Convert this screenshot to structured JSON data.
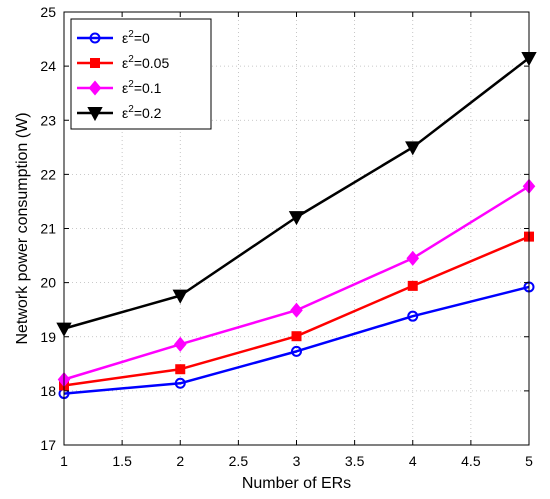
{
  "chart_data": {
    "type": "line",
    "xlabel": "Number of ERs",
    "ylabel": "Network power consumption (W)",
    "xlim": [
      1,
      5
    ],
    "ylim": [
      17,
      25
    ],
    "grid": true,
    "legend_position": "top-left",
    "x_ticks": [
      "1",
      "1.5",
      "2",
      "2.5",
      "3",
      "3.5",
      "4",
      "4.5",
      "5"
    ],
    "y_ticks": [
      "17",
      "18",
      "19",
      "20",
      "21",
      "22",
      "23",
      "24",
      "25"
    ],
    "x": [
      1,
      2,
      3,
      4,
      5
    ],
    "series": [
      {
        "name": "ε²=0",
        "legend_base": "ε",
        "legend_sup": "2",
        "legend_rest": "=0",
        "color": "#0000ff",
        "marker": "circle",
        "values": [
          17.95,
          18.14,
          18.73,
          19.38,
          19.92
        ]
      },
      {
        "name": "ε²=0.05",
        "legend_base": "ε",
        "legend_sup": "2",
        "legend_rest": "=0.05",
        "color": "#ff0000",
        "marker": "square",
        "values": [
          18.1,
          18.4,
          19.01,
          19.94,
          20.85
        ]
      },
      {
        "name": "ε²=0.1",
        "legend_base": "ε",
        "legend_sup": "2",
        "legend_rest": "=0.1",
        "color": "#ff00ff",
        "marker": "diamond",
        "values": [
          18.21,
          18.86,
          19.49,
          20.45,
          21.78
        ]
      },
      {
        "name": "ε²=0.2",
        "legend_base": "ε",
        "legend_sup": "2",
        "legend_rest": "=0.2",
        "color": "#000000",
        "marker": "triangle-down",
        "values": [
          19.15,
          19.76,
          21.21,
          22.5,
          24.15
        ]
      }
    ]
  }
}
